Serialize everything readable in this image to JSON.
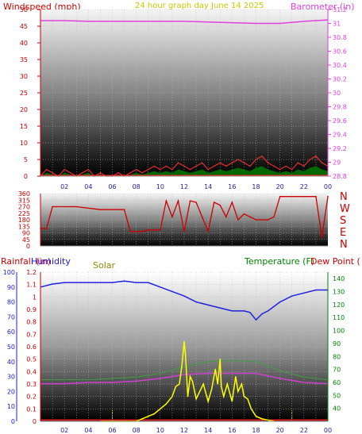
{
  "colors": {
    "windspeed": "#cc0000",
    "title": "#c8c800",
    "barometer": "#e040e0",
    "direction": "#cc0000",
    "rain": "#cc0000",
    "humidity": "#2020e0",
    "solar": "#888800",
    "temperature": "#008000",
    "dewpoint": "#cc0000",
    "axis_left": "#cc0000",
    "axis_blue": "#2020e0",
    "axis_green": "#008000",
    "solar_line": "#ffff00",
    "gust_line": "#e03030",
    "avg_fill": "#008000",
    "baro_line": "#e040e0",
    "humid_line": "#2020e0",
    "temp_line": "#40a040",
    "dew_line": "#d040d0",
    "rain_line": "#ff2020",
    "dash_marker": "#e0e040"
  },
  "header": {
    "left": "Windspeed (mph)",
    "center": "24 hour graph day    June 14 2025",
    "right": "Barometer (in)"
  },
  "panel3_header": {
    "rain": "Rainfall (in)",
    "humidity": "Humidity",
    "solar": "Solar",
    "temperature": "Temperature (F)",
    "dewpoint": "Dew Point ("
  },
  "x_ticks": [
    "02",
    "04",
    "06",
    "08",
    "10",
    "12",
    "14",
    "16",
    "18",
    "20",
    "22",
    "00"
  ],
  "chart_data": [
    {
      "type": "area",
      "name": "windspeed-panel",
      "x_unit": "hour",
      "xlim": [
        0,
        24
      ],
      "y_left": {
        "label": "Windspeed (mph)",
        "ylim": [
          0,
          50
        ],
        "ticks": [
          "0",
          "5",
          "10",
          "15",
          "20",
          "25",
          "30",
          "35",
          "40",
          "45",
          "50"
        ]
      },
      "y_right": {
        "label": "Barometer (in)",
        "ylim": [
          28.8,
          31.2
        ],
        "ticks": [
          "28.8",
          "29",
          "29.2",
          "29.4",
          "29.6",
          "29.8",
          "30",
          "30.2",
          "30.4",
          "30.6",
          "30.8",
          "31",
          "31.2"
        ]
      },
      "series": [
        {
          "name": "Windspeed",
          "type": "line",
          "x": [
            0,
            0.5,
            1,
            1.5,
            2,
            2.5,
            3,
            3.5,
            4,
            4.5,
            5,
            5.5,
            6,
            6.5,
            7,
            7.5,
            8,
            8.5,
            9,
            9.5,
            10,
            10.5,
            11,
            11.5,
            12,
            12.5,
            13,
            13.5,
            14,
            14.5,
            15,
            15.5,
            16,
            16.5,
            17,
            17.5,
            18,
            18.5,
            19,
            19.5,
            20,
            20.5,
            21,
            21.5,
            22,
            22.5,
            23,
            23.5,
            24
          ],
          "values": [
            0,
            2,
            1,
            0,
            2,
            1,
            0,
            1,
            2,
            0,
            1,
            0,
            0,
            1,
            0,
            1,
            2,
            1,
            2,
            3,
            2,
            3,
            2,
            4,
            3,
            2,
            3,
            4,
            2,
            3,
            4,
            3,
            4,
            5,
            4,
            3,
            5,
            6,
            4,
            3,
            2,
            3,
            2,
            4,
            3,
            5,
            6,
            4,
            3
          ]
        },
        {
          "name": "Barometer",
          "type": "line",
          "x": [
            0,
            2,
            4,
            6,
            8,
            10,
            12,
            14,
            16,
            18,
            20,
            22,
            24
          ],
          "values": [
            31.04,
            31.04,
            31.03,
            31.03,
            31.03,
            31.03,
            31.03,
            31.02,
            31.01,
            31.0,
            31.0,
            31.03,
            31.05
          ]
        }
      ]
    },
    {
      "type": "line",
      "name": "wind-direction-panel",
      "x_unit": "hour",
      "xlim": [
        0,
        24
      ],
      "ylim": [
        0,
        360
      ],
      "y_ticks": [
        "0",
        "45",
        "90",
        "135",
        "180",
        "225",
        "270",
        "315",
        "360"
      ],
      "compass": [
        "N",
        "W",
        "S",
        "E",
        "N"
      ],
      "series": [
        {
          "name": "Wind direction",
          "x": [
            0,
            0.5,
            1,
            3,
            5,
            7,
            7.5,
            8,
            8.5,
            9,
            10,
            10.5,
            11,
            11.5,
            12,
            12.5,
            13,
            13.5,
            14,
            14.5,
            15,
            15.5,
            16,
            16.5,
            17,
            17.5,
            18,
            18.5,
            19,
            19.5,
            20,
            21,
            22,
            23,
            23.5,
            24
          ],
          "values": [
            120,
            120,
            270,
            270,
            250,
            250,
            100,
            100,
            100,
            110,
            110,
            310,
            200,
            310,
            100,
            310,
            300,
            200,
            100,
            300,
            280,
            200,
            300,
            180,
            220,
            200,
            180,
            180,
            180,
            200,
            340,
            340,
            340,
            340,
            60,
            340
          ]
        }
      ]
    },
    {
      "type": "line",
      "name": "rain-humidity-solar-temperature-panel",
      "x_unit": "hour",
      "xlim": [
        0,
        24
      ],
      "y_rain": {
        "label": "Rainfall (in)",
        "ylim": [
          0,
          1.2
        ],
        "ticks": [
          "0",
          "0.1",
          "0.2",
          "0.3",
          "0.4",
          "0.5",
          "0.6",
          "0.7",
          "0.8",
          "0.9",
          "1",
          "1.1",
          "1.2"
        ]
      },
      "y_humidity": {
        "label": "Humidity",
        "ylim": [
          0,
          100
        ],
        "ticks": [
          "0",
          "10",
          "20",
          "30",
          "40",
          "50",
          "60",
          "70",
          "80",
          "90",
          "100"
        ]
      },
      "y_temperature": {
        "label": "Temperature (F)",
        "ylim": [
          30,
          145
        ],
        "ticks": [
          "40",
          "50",
          "60",
          "70",
          "80",
          "90",
          "100",
          "110",
          "120",
          "130",
          "140"
        ]
      },
      "series": [
        {
          "name": "Humidity",
          "x": [
            0,
            1,
            2,
            4,
            6,
            7,
            8,
            9,
            10,
            11,
            12,
            13,
            14,
            15,
            16,
            17,
            17.5,
            18,
            18.5,
            19,
            20,
            21,
            22,
            23,
            24
          ],
          "values": [
            90,
            92,
            93,
            93,
            93,
            94,
            93,
            93,
            90,
            87,
            84,
            80,
            78,
            76,
            74,
            74,
            73,
            68,
            72,
            74,
            80,
            84,
            86,
            88,
            88
          ]
        },
        {
          "name": "Temperature",
          "x": [
            0,
            2,
            4,
            6,
            8,
            10,
            12,
            14,
            16,
            18,
            20,
            22,
            24
          ],
          "values": [
            62,
            62,
            62,
            63,
            64,
            67,
            72,
            76,
            77,
            76,
            69,
            64,
            62
          ]
        },
        {
          "name": "Dew Point",
          "x": [
            0,
            2,
            4,
            6,
            8,
            10,
            12,
            14,
            16,
            18,
            20,
            22,
            24
          ],
          "values": [
            59,
            59,
            60,
            60,
            61,
            63,
            66,
            67,
            67,
            67,
            63,
            60,
            59
          ]
        },
        {
          "name": "Rainfall",
          "x": [
            0,
            24
          ],
          "values": [
            0.01,
            0.01
          ]
        },
        {
          "name": "Solar",
          "x": [
            5,
            6,
            7,
            8,
            9,
            9.5,
            10,
            10.5,
            11,
            11.3,
            11.6,
            11.8,
            12,
            12.1,
            12.3,
            12.5,
            12.7,
            13,
            13.3,
            13.6,
            14,
            14.3,
            14.6,
            14.8,
            15,
            15.1,
            15.3,
            15.6,
            16,
            16.3,
            16.5,
            16.8,
            17,
            17.3,
            17.6,
            18,
            18.5,
            19,
            19.5
          ],
          "values": [
            0,
            0,
            0,
            0,
            0.04,
            0.06,
            0.1,
            0.14,
            0.2,
            0.28,
            0.3,
            0.44,
            0.64,
            0.55,
            0.2,
            0.36,
            0.32,
            0.18,
            0.24,
            0.3,
            0.16,
            0.26,
            0.42,
            0.3,
            0.5,
            0.28,
            0.2,
            0.3,
            0.16,
            0.36,
            0.24,
            0.3,
            0.2,
            0.18,
            0.1,
            0.04,
            0.02,
            0.01,
            0
          ]
        }
      ]
    }
  ]
}
